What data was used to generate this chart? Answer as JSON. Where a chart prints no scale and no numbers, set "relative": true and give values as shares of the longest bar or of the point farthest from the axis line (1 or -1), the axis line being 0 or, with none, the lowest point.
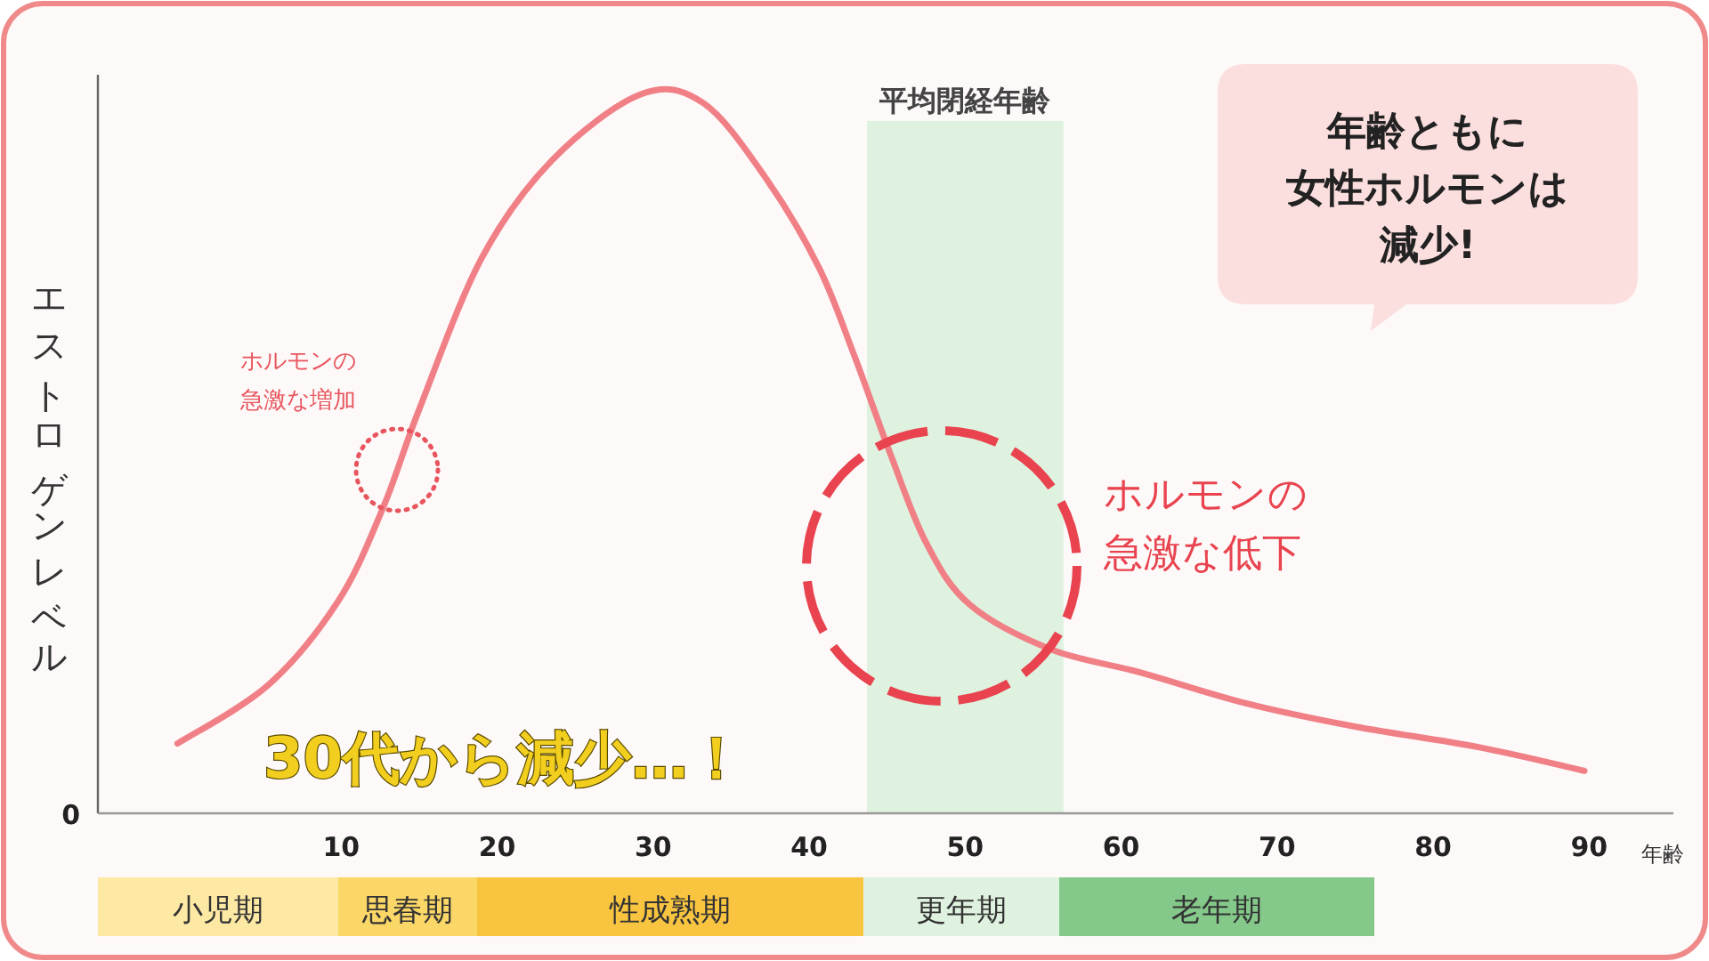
{
  "chart_data": [
    {
      "type": "line",
      "relative": true,
      "ylabel": "エストロゲンレベル",
      "xlabel": "年齢",
      "xlim": [
        -5.6,
        95.4
      ],
      "xticks": [
        10,
        20,
        30,
        40,
        50,
        60,
        70,
        80,
        90
      ],
      "marker": "none",
      "line_style": "solid",
      "series": [
        {
          "color": "#f07f86",
          "x": [
            -0.5,
            5.3,
            9.8,
            12.7,
            15.0,
            19.0,
            23.5,
            29.2,
            33.2,
            37.2,
            40.6,
            42.9,
            45.2,
            47.5,
            50.3,
            55.5,
            61.2,
            68.0,
            74.9,
            82.9,
            89.7
          ],
          "values": [
            0.097,
            0.178,
            0.295,
            0.426,
            0.562,
            0.772,
            0.908,
            1.0,
            0.988,
            0.884,
            0.76,
            0.636,
            0.5,
            0.376,
            0.29,
            0.228,
            0.196,
            0.153,
            0.121,
            0.092,
            0.059
          ]
        }
      ],
      "bands": [
        {
          "axis": "x",
          "from": 43.7,
          "to": 56.3,
          "label": "平均閉経年齢",
          "color": "#dff2df"
        }
      ],
      "annotations": [
        "ホルモンの急激な増加",
        "ホルモンの急激な低下",
        "30代から減少…！",
        "年齢ともに",
        "女性ホルモンは",
        "減少!",
        "0"
      ]
    },
    {
      "type": "other",
      "categories": [
        "小児期",
        "思春期",
        "性成熟期",
        "更年期",
        "老年期"
      ],
      "colors": [
        "#fde9a4",
        "#fbd767",
        "#f9c440",
        "#dff2df",
        "#84c98a"
      ]
    }
  ]
}
